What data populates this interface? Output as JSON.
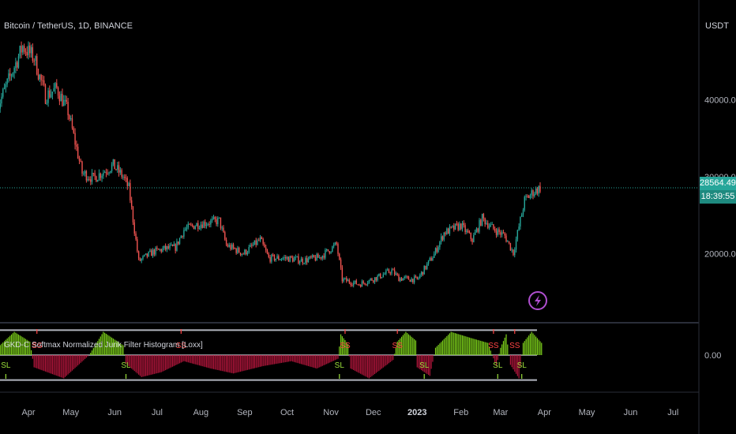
{
  "header": {
    "symbol": "Bitcoin / TetherUS, 1D, BINANCE",
    "currency": "USDT"
  },
  "price_tags": {
    "last_price": "28564.49",
    "countdown": "18:39:55"
  },
  "indicator": {
    "title": "GKD-C Softmax Normalized Jurik Filter Histogram [Loxx]",
    "zero_label": "0.00",
    "signal_labels": [
      "SL",
      "SS"
    ]
  },
  "colors": {
    "up_candle": "#26a69a",
    "down_candle": "#ef5350",
    "price_line": "#26a69a",
    "hist_positive": "#7cd01a",
    "hist_negative": "#b3163c",
    "band": "#b2b5be",
    "signal_short": "#ff4444",
    "signal_long": "#9be03a",
    "lightning": "#b04fd0"
  },
  "chart_data": {
    "type": "candlestick",
    "title": "Bitcoin / TetherUS, 1D, BINANCE",
    "y_axis": {
      "unit": "USDT",
      "tick_labels": [
        "40000.00",
        "30000.00",
        "20000.00"
      ],
      "ticks": [
        40000,
        30000,
        20000
      ],
      "range": [
        13500,
        50000
      ],
      "current_price": 28564.49
    },
    "x_axis": {
      "tick_labels": [
        "Apr",
        "May",
        "Jun",
        "Jul",
        "Aug",
        "Sep",
        "Oct",
        "Nov",
        "Dec",
        "2023",
        "Feb",
        "Mar",
        "Apr",
        "May",
        "Jun",
        "Jul"
      ]
    },
    "price_path": [
      [
        "2022-03-10",
        39000
      ],
      [
        "2022-03-28",
        47000
      ],
      [
        "2022-04-05",
        45500
      ],
      [
        "2022-04-13",
        40500
      ],
      [
        "2022-04-21",
        41500
      ],
      [
        "2022-04-29",
        38500
      ],
      [
        "2022-05-09",
        30500
      ],
      [
        "2022-05-17",
        29800
      ],
      [
        "2022-05-31",
        31500
      ],
      [
        "2022-06-07",
        30000
      ],
      [
        "2022-06-11",
        28500
      ],
      [
        "2022-06-18",
        19000
      ],
      [
        "2022-06-28",
        20200
      ],
      [
        "2022-07-06",
        20600
      ],
      [
        "2022-07-14",
        20800
      ],
      [
        "2022-07-20",
        23100
      ],
      [
        "2022-07-29",
        23800
      ],
      [
        "2022-08-14",
        24300
      ],
      [
        "2022-08-19",
        21100
      ],
      [
        "2022-08-31",
        20000
      ],
      [
        "2022-09-12",
        21800
      ],
      [
        "2022-09-18",
        19400
      ],
      [
        "2022-10-01",
        19400
      ],
      [
        "2022-10-12",
        19100
      ],
      [
        "2022-10-24",
        19500
      ],
      [
        "2022-11-05",
        21200
      ],
      [
        "2022-11-09",
        16600
      ],
      [
        "2022-11-21",
        16000
      ],
      [
        "2022-12-05",
        17000
      ],
      [
        "2022-12-14",
        17800
      ],
      [
        "2022-12-19",
        16800
      ],
      [
        "2023-01-01",
        16600
      ],
      [
        "2023-01-13",
        19900
      ],
      [
        "2023-01-20",
        22700
      ],
      [
        "2023-02-01",
        23700
      ],
      [
        "2023-02-09",
        21800
      ],
      [
        "2023-02-16",
        24600
      ],
      [
        "2023-02-24",
        23200
      ],
      [
        "2023-03-04",
        22300
      ],
      [
        "2023-03-10",
        20100
      ],
      [
        "2023-03-18",
        26900
      ],
      [
        "2023-03-24",
        28000
      ],
      [
        "2023-03-29",
        28564
      ]
    ],
    "oscillator": {
      "name": "GKD-C Softmax Normalized Jurik Filter Histogram [Loxx]",
      "zero_line": 0.0,
      "range": [
        -1,
        1
      ],
      "path": [
        [
          "2022-03-10",
          0.3
        ],
        [
          "2022-03-22",
          0.95
        ],
        [
          "2022-04-02",
          0.55
        ],
        [
          "2022-04-05",
          -0.5
        ],
        [
          "2022-04-26",
          -0.95
        ],
        [
          "2022-05-14",
          0.0
        ],
        [
          "2022-05-24",
          0.95
        ],
        [
          "2022-06-07",
          0.4
        ],
        [
          "2022-06-09",
          -0.35
        ],
        [
          "2022-06-20",
          -0.9
        ],
        [
          "2022-07-04",
          -0.7
        ],
        [
          "2022-07-20",
          -0.25
        ],
        [
          "2022-08-08",
          -0.55
        ],
        [
          "2022-08-24",
          -0.75
        ],
        [
          "2022-09-14",
          -0.45
        ],
        [
          "2022-10-04",
          -0.25
        ],
        [
          "2022-10-22",
          -0.55
        ],
        [
          "2022-11-06",
          -0.15
        ],
        [
          "2022-11-08",
          0.85
        ],
        [
          "2022-11-13",
          0.45
        ],
        [
          "2022-11-15",
          -0.55
        ],
        [
          "2022-11-28",
          -0.95
        ],
        [
          "2022-12-15",
          -0.2
        ],
        [
          "2022-12-18",
          0.55
        ],
        [
          "2022-12-24",
          0.95
        ],
        [
          "2022-12-31",
          0.6
        ],
        [
          "2023-01-01",
          -0.5
        ],
        [
          "2023-01-10",
          -0.85
        ],
        [
          "2023-01-14",
          0.3
        ],
        [
          "2023-01-25",
          0.95
        ],
        [
          "2023-02-08",
          0.7
        ],
        [
          "2023-02-20",
          0.5
        ],
        [
          "2023-02-26",
          -0.45
        ],
        [
          "2023-03-01",
          0.3
        ],
        [
          "2023-03-05",
          0.85
        ],
        [
          "2023-03-08",
          -0.4
        ],
        [
          "2023-03-14",
          -0.95
        ],
        [
          "2023-03-17",
          0.5
        ],
        [
          "2023-03-23",
          0.95
        ],
        [
          "2023-03-30",
          0.5
        ]
      ],
      "signals": [
        {
          "date": "2022-03-16",
          "text": "SL"
        },
        {
          "date": "2022-04-07",
          "text": "SS"
        },
        {
          "date": "2022-06-09",
          "text": "SL"
        },
        {
          "date": "2022-07-18",
          "text": "SS"
        },
        {
          "date": "2022-11-07",
          "text": "SL"
        },
        {
          "date": "2022-11-11",
          "text": "SS"
        },
        {
          "date": "2022-12-18",
          "text": "SS"
        },
        {
          "date": "2023-01-06",
          "text": "SL"
        },
        {
          "date": "2023-02-24",
          "text": "SS"
        },
        {
          "date": "2023-02-27",
          "text": "SL"
        },
        {
          "date": "2023-03-11",
          "text": "SS"
        },
        {
          "date": "2023-03-16",
          "text": "SL"
        }
      ]
    }
  }
}
